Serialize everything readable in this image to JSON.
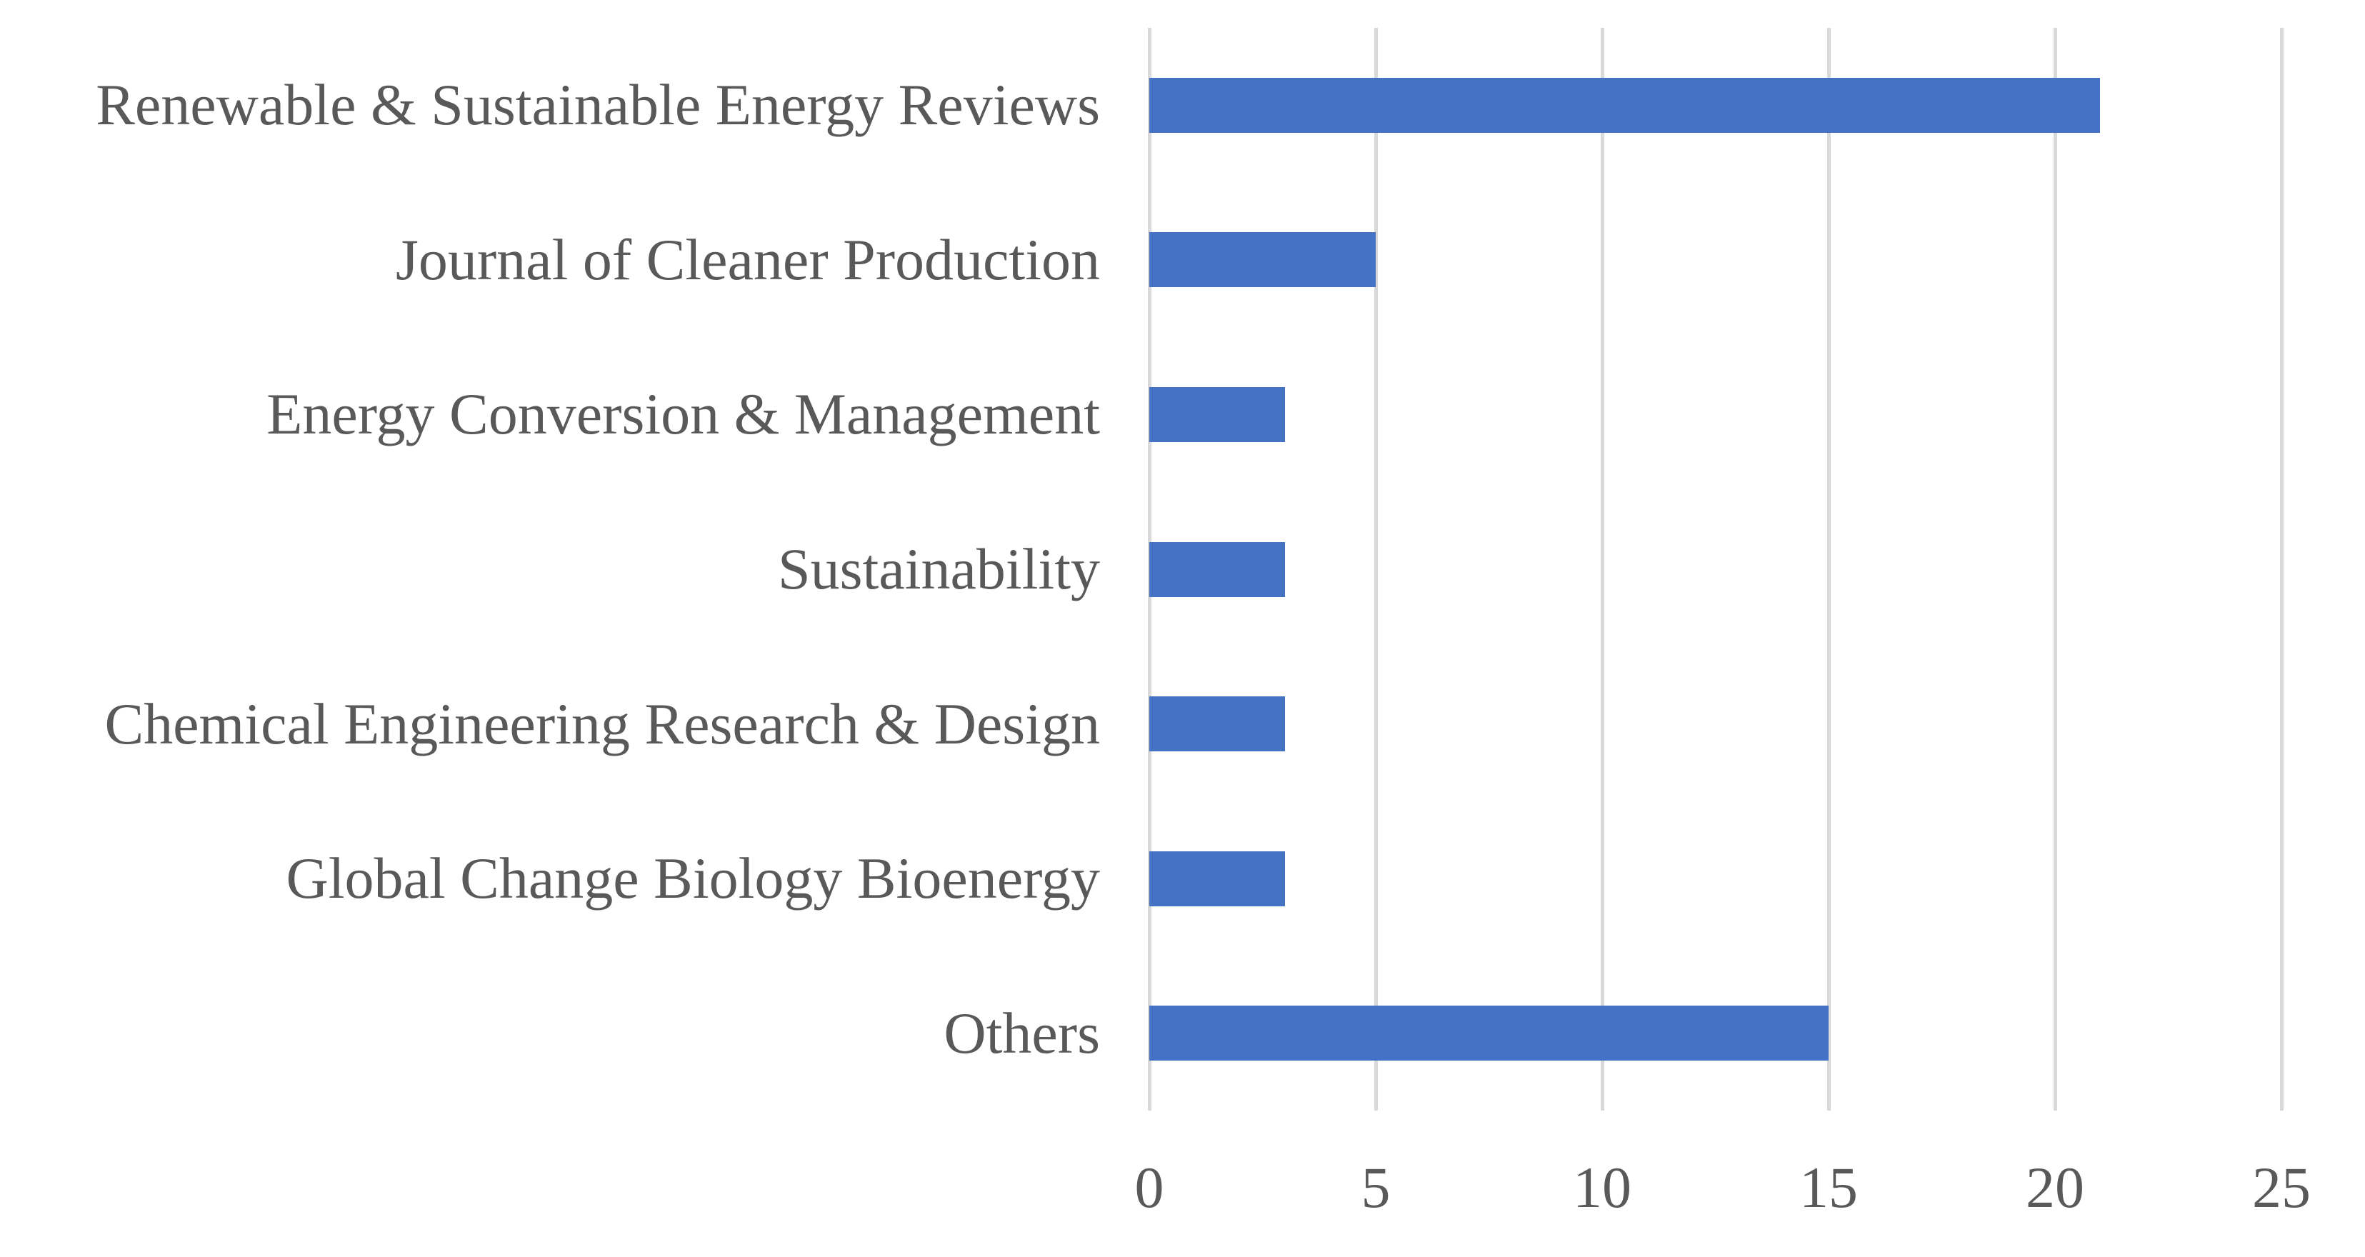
{
  "chart_data": {
    "type": "bar",
    "orientation": "horizontal",
    "title": "",
    "xlabel": "",
    "ylabel": "",
    "categories": [
      "Renewable & Sustainable Energy Reviews",
      "Journal of Cleaner Production",
      "Energy Conversion & Management",
      "Sustainability",
      "Chemical Engineering Research & Design",
      "Global Change Biology Bioenergy",
      "Others"
    ],
    "values": [
      21,
      5,
      3,
      3,
      3,
      3,
      15
    ],
    "xlim": [
      0,
      25
    ],
    "x_ticks": [
      0,
      5,
      10,
      15,
      20,
      25
    ],
    "grid": "vertical-gridlines-on",
    "legend": "none",
    "colors": {
      "bar": "#4472C4",
      "gridline": "#D9D9D9",
      "text": "#595959",
      "background": "#FFFFFF"
    }
  }
}
